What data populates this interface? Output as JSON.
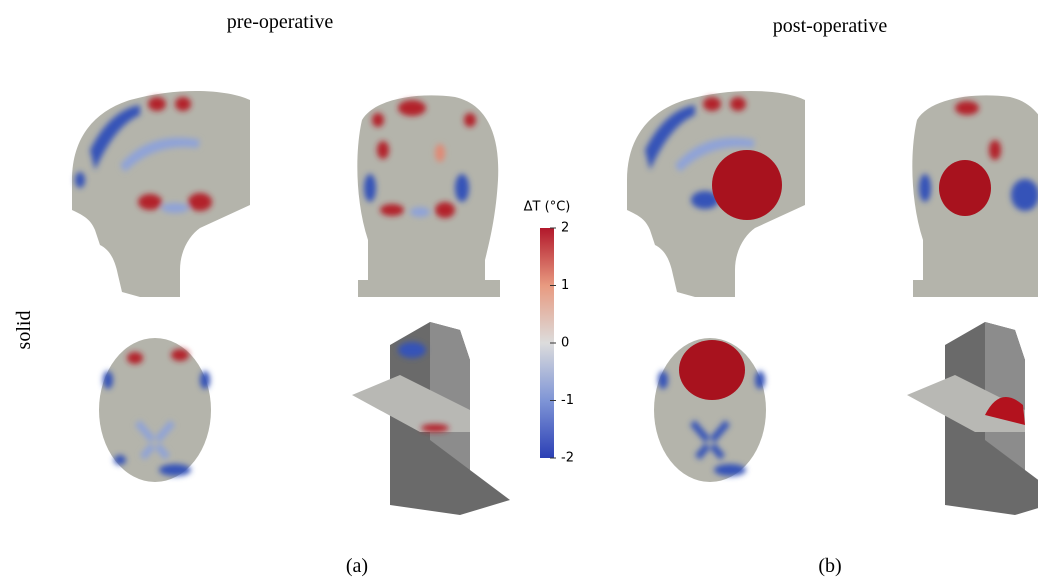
{
  "header": {
    "left_title": "pre-operative",
    "right_title": "post-operative"
  },
  "row_label": "solid",
  "colorbar": {
    "label": "ΔT (°C)",
    "lim": [
      -2,
      2
    ],
    "ticks": [
      2,
      1,
      0,
      -1,
      -2
    ],
    "colors": [
      "#2b3fb5",
      "#7f95d6",
      "#dcdcdc",
      "#e89a80",
      "#b2182b"
    ]
  },
  "captions": [
    "(a)",
    "(b)"
  ]
}
